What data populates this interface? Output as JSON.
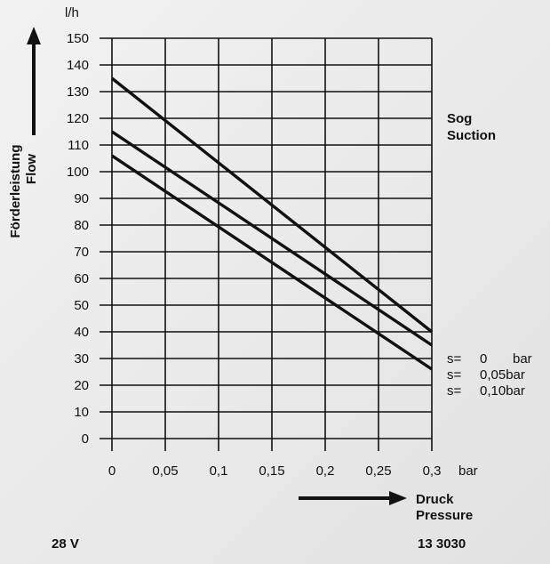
{
  "chart_data": {
    "type": "line",
    "y_unit": "l/h",
    "x_unit": "bar",
    "ylabel": [
      "Förderleistung",
      "Flow"
    ],
    "xlabel": [
      "Druck",
      "Pressure"
    ],
    "side_note": [
      "Sog",
      "Suction"
    ],
    "xlim": [
      0,
      0.3
    ],
    "ylim": [
      0,
      150
    ],
    "x_ticks": [
      0,
      0.05,
      0.1,
      0.15,
      0.2,
      0.25,
      0.3
    ],
    "x_tick_labels": [
      "0",
      "0,05",
      "0,1",
      "0,15",
      "0,2",
      "0,25",
      "0,3"
    ],
    "y_ticks": [
      0,
      10,
      20,
      30,
      40,
      50,
      60,
      70,
      80,
      90,
      100,
      110,
      120,
      130,
      140,
      150
    ],
    "grid": true,
    "series": [
      {
        "label": [
          "s=",
          "0",
          "bar"
        ],
        "x": [
          0,
          0.3
        ],
        "y": [
          135,
          40
        ]
      },
      {
        "label": [
          "s=",
          "0,05bar",
          ""
        ],
        "x": [
          0,
          0.3
        ],
        "y": [
          115,
          35
        ]
      },
      {
        "label": [
          "s=",
          "0,10bar",
          ""
        ],
        "x": [
          0,
          0.3
        ],
        "y": [
          106,
          26
        ]
      }
    ],
    "voltage": "28 V",
    "part_number": "13 3030"
  }
}
